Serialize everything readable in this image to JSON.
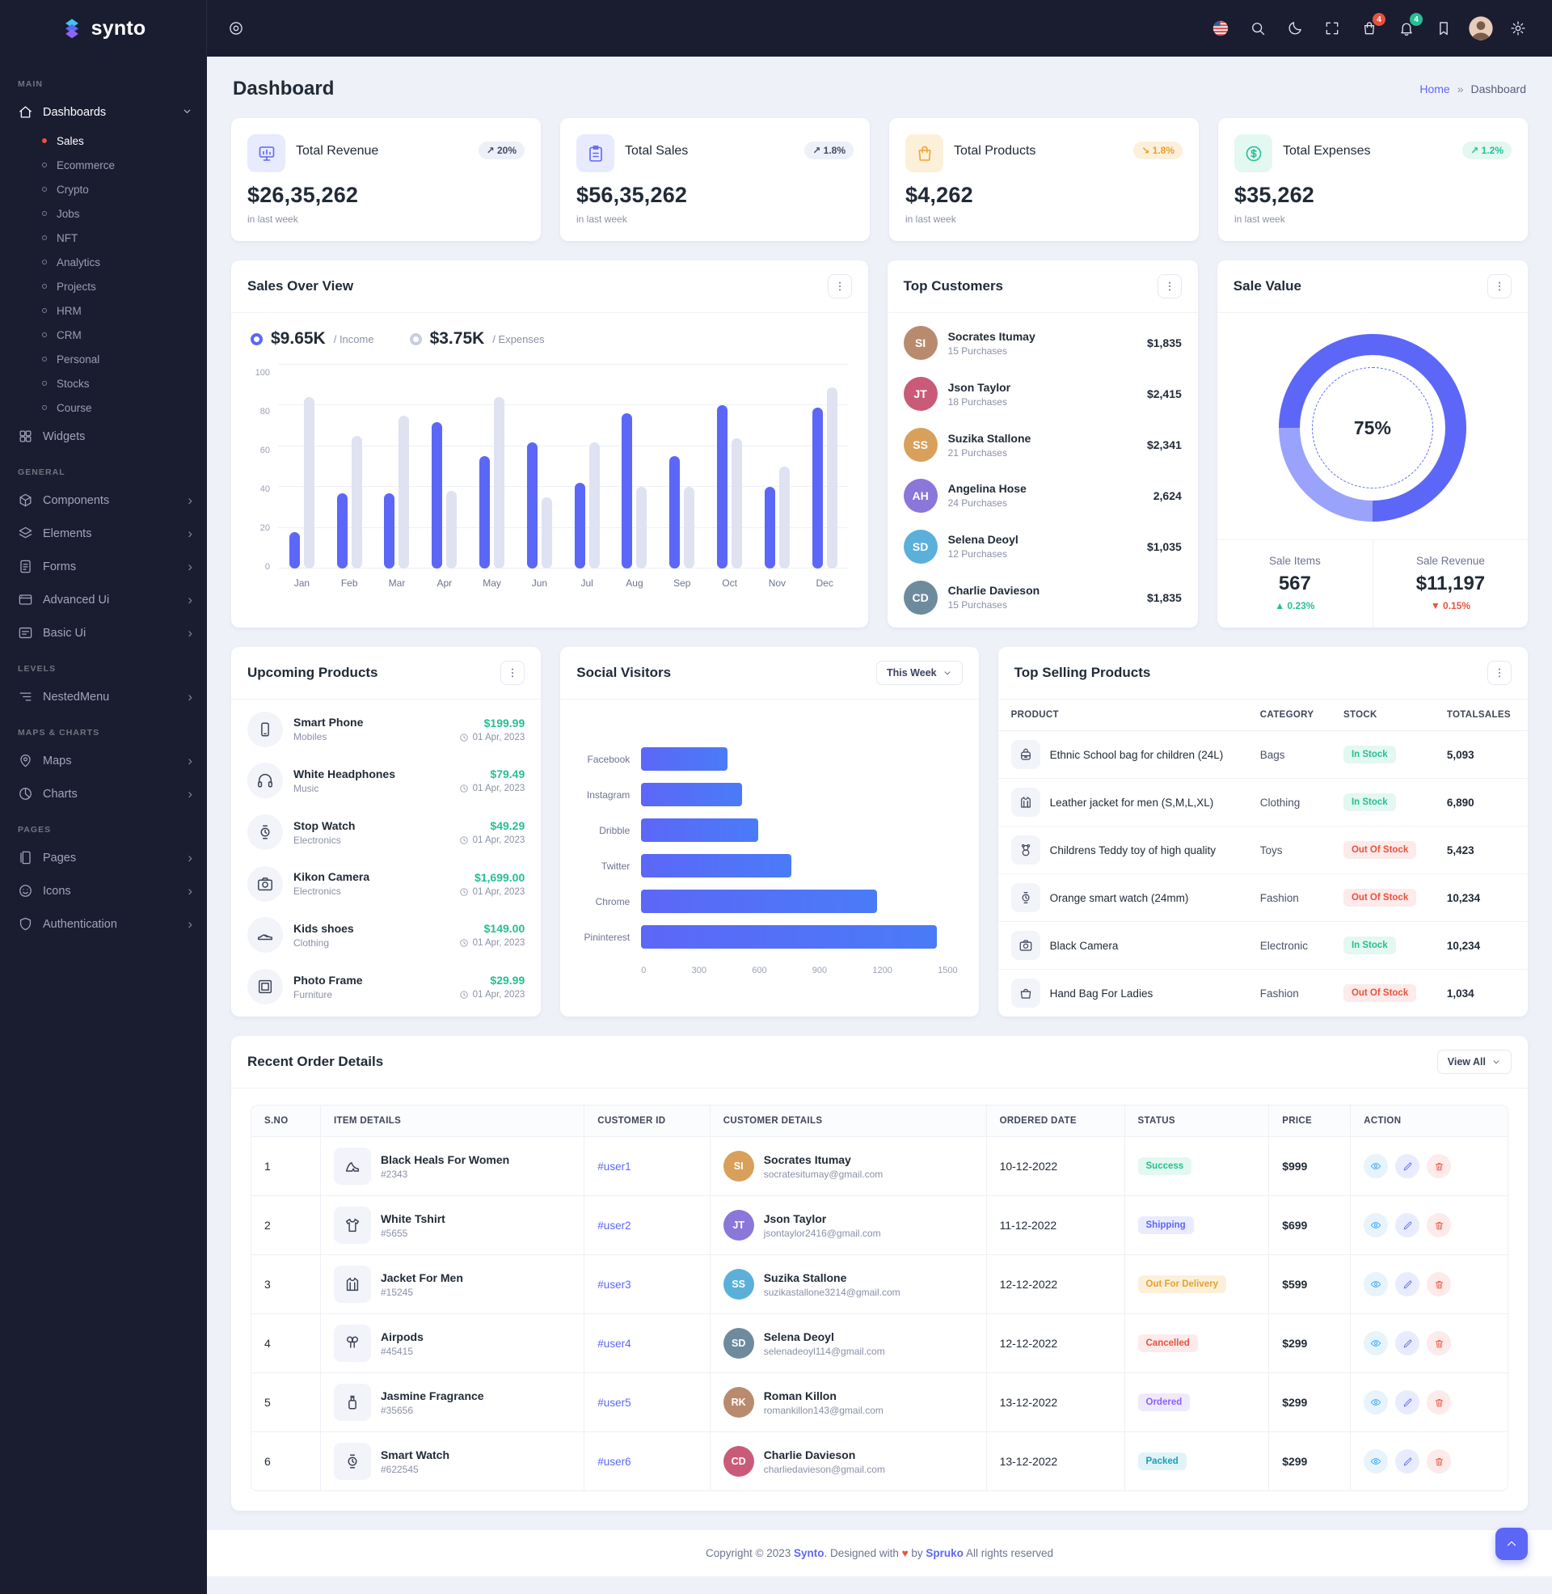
{
  "brand": {
    "name": "synto"
  },
  "topbar": {
    "cart_badge": "4",
    "bell_badge": "4"
  },
  "page": {
    "title": "Dashboard",
    "breadcrumb_home": "Home",
    "breadcrumb_sep": "»",
    "breadcrumb_current": "Dashboard"
  },
  "colors": {
    "primary": "#5c67f7",
    "success": "#26bf94",
    "danger": "#e6533c",
    "warning": "#f5b849",
    "dark": "#1a1c30"
  },
  "sidebar": {
    "sections": [
      {
        "label": "MAIN",
        "items": [
          {
            "label": "Dashboards",
            "icon": "home-icon",
            "chevron": true,
            "expanded": true,
            "active": true,
            "children": [
              {
                "label": "Sales",
                "active": true
              },
              {
                "label": "Ecommerce"
              },
              {
                "label": "Crypto"
              },
              {
                "label": "Jobs"
              },
              {
                "label": "NFT"
              },
              {
                "label": "Analytics"
              },
              {
                "label": "Projects"
              },
              {
                "label": "HRM"
              },
              {
                "label": "CRM"
              },
              {
                "label": "Personal"
              },
              {
                "label": "Stocks"
              },
              {
                "label": "Course"
              }
            ]
          },
          {
            "label": "Widgets",
            "icon": "widgets-icon",
            "chevron": false
          }
        ]
      },
      {
        "label": "GENERAL",
        "items": [
          {
            "label": "Components",
            "icon": "components-icon",
            "chevron": true
          },
          {
            "label": "Elements",
            "icon": "elements-icon",
            "chevron": true
          },
          {
            "label": "Forms",
            "icon": "forms-icon",
            "chevron": true
          },
          {
            "label": "Advanced Ui",
            "icon": "advanced-ui-icon",
            "chevron": true
          },
          {
            "label": "Basic Ui",
            "icon": "basic-ui-icon",
            "chevron": true
          }
        ]
      },
      {
        "label": "LEVELS",
        "items": [
          {
            "label": "NestedMenu",
            "icon": "nested-menu-icon",
            "chevron": true
          }
        ]
      },
      {
        "label": "MAPS & CHARTS",
        "items": [
          {
            "label": "Maps",
            "icon": "maps-icon",
            "chevron": true
          },
          {
            "label": "Charts",
            "icon": "charts-icon",
            "chevron": true
          }
        ]
      },
      {
        "label": "PAGES",
        "items": [
          {
            "label": "Pages",
            "icon": "pages-icon",
            "chevron": true
          },
          {
            "label": "Icons",
            "icon": "icons-icon",
            "chevron": true
          },
          {
            "label": "Authentication",
            "icon": "auth-icon",
            "chevron": true
          }
        ]
      }
    ]
  },
  "stats": [
    {
      "title": "Total Revenue",
      "value": "$26,35,262",
      "badge": "20%",
      "trend": "up",
      "caption": "in last week",
      "icon": "revenue-icon",
      "tone": "primary",
      "badge_tone": "neutral"
    },
    {
      "title": "Total Sales",
      "value": "$56,35,262",
      "badge": "1.8%",
      "trend": "up",
      "caption": "in last week",
      "icon": "sales-icon",
      "tone": "primary",
      "badge_tone": "neutral"
    },
    {
      "title": "Total Products",
      "value": "$4,262",
      "badge": "1.8%",
      "trend": "down",
      "caption": "in last week",
      "icon": "products-icon",
      "tone": "warning",
      "badge_tone": "warning"
    },
    {
      "title": "Total Expenses",
      "value": "$35,262",
      "badge": "1.2%",
      "trend": "up",
      "caption": "in last week",
      "icon": "expenses-icon",
      "tone": "success",
      "badge_tone": "success"
    }
  ],
  "sales_over_view": {
    "title": "Sales Over View",
    "legend": [
      {
        "value": "$9.65K",
        "label": "/ Income",
        "color": "#5c67f7"
      },
      {
        "value": "$3.75K",
        "label": "/ Expenses",
        "color": "#c8cde2"
      }
    ],
    "chart": {
      "type": "bar",
      "categories": [
        "Jan",
        "Feb",
        "Mar",
        "Apr",
        "May",
        "Jun",
        "Jul",
        "Aug",
        "Sep",
        "Oct",
        "Nov",
        "Dec"
      ],
      "series": [
        {
          "name": "Income",
          "values": [
            18,
            37,
            37,
            72,
            55,
            62,
            42,
            76,
            55,
            80,
            40,
            79
          ]
        },
        {
          "name": "Expenses",
          "values": [
            84,
            65,
            75,
            38,
            84,
            35,
            62,
            40,
            40,
            64,
            50,
            89
          ]
        }
      ],
      "ylim": [
        0,
        100
      ],
      "yticks": [
        0,
        20,
        40,
        60,
        80,
        100
      ]
    }
  },
  "top_customers": {
    "title": "Top Customers",
    "customers": [
      {
        "name": "Socrates Itumay",
        "purchases": "15 Purchases",
        "amount": "$1,835"
      },
      {
        "name": "Json Taylor",
        "purchases": "18 Purchases",
        "amount": "$2,415"
      },
      {
        "name": "Suzika Stallone",
        "purchases": "21 Purchases",
        "amount": "$2,341"
      },
      {
        "name": "Angelina Hose",
        "purchases": "24 Purchases",
        "amount": "2,624"
      },
      {
        "name": "Selena Deoyl",
        "purchases": "12 Purchases",
        "amount": "$1,035"
      },
      {
        "name": "Charlie Davieson",
        "purchases": "15 Purchases",
        "amount": "$1,835"
      }
    ]
  },
  "sale_value": {
    "title": "Sale Value",
    "percent": "75%",
    "donut_segments": [
      {
        "value": 75,
        "color": "#5c67f7"
      },
      {
        "value": 25,
        "color": "#99a3fb"
      }
    ],
    "items": [
      {
        "label": "Sale Items",
        "value": "567",
        "change": "0.23%",
        "direction": "up"
      },
      {
        "label": "Sale Revenue",
        "value": "$11,197",
        "change": "0.15%",
        "direction": "down"
      }
    ]
  },
  "upcoming_products": {
    "title": "Upcoming Products",
    "products": [
      {
        "name": "Smart Phone",
        "category": "Mobiles",
        "price": "$199.99",
        "date": "01 Apr, 2023",
        "icon": "phone-icon"
      },
      {
        "name": "White Headphones",
        "category": "Music",
        "price": "$79.49",
        "date": "01 Apr, 2023",
        "icon": "headphones-icon"
      },
      {
        "name": "Stop Watch",
        "category": "Electronics",
        "price": "$49.29",
        "date": "01 Apr, 2023",
        "icon": "watch-icon"
      },
      {
        "name": "Kikon Camera",
        "category": "Electronics",
        "price": "$1,699.00",
        "date": "01 Apr, 2023",
        "icon": "camera-icon"
      },
      {
        "name": "Kids shoes",
        "category": "Clothing",
        "price": "$149.00",
        "date": "01 Apr, 2023",
        "icon": "shoe-icon"
      },
      {
        "name": "Photo Frame",
        "category": "Furniture",
        "price": "$29.99",
        "date": "01 Apr, 2023",
        "icon": "frame-icon"
      }
    ]
  },
  "social_visitors": {
    "title": "Social Visitors",
    "filter_label": "This Week",
    "chart": {
      "type": "bar-horizontal",
      "categories": [
        "Facebook",
        "Instagram",
        "Dribble",
        "Twitter",
        "Chrome",
        "Pininterest"
      ],
      "values": [
        410,
        480,
        555,
        710,
        1120,
        1400
      ],
      "xticks": [
        0,
        300,
        600,
        900,
        1200,
        1500
      ],
      "xlim": [
        0,
        1500
      ]
    }
  },
  "top_selling": {
    "title": "Top Selling Products",
    "columns": [
      "PRODUCT",
      "CATEGORY",
      "STOCK",
      "TOTALSALES"
    ],
    "rows": [
      {
        "product": "Ethnic School bag for children (24L)",
        "category": "Bags",
        "stock": "In Stock",
        "stock_state": "in",
        "sales": "5,093",
        "icon": "schoolbag-icon"
      },
      {
        "product": "Leather jacket for men (S,M,L,XL)",
        "category": "Clothing",
        "stock": "In Stock",
        "stock_state": "in",
        "sales": "6,890",
        "icon": "jacket-icon"
      },
      {
        "product": "Childrens Teddy toy of high quality",
        "category": "Toys",
        "stock": "Out Of Stock",
        "stock_state": "out",
        "sales": "5,423",
        "icon": "teddy-icon"
      },
      {
        "product": "Orange smart watch (24mm)",
        "category": "Fashion",
        "stock": "Out Of Stock",
        "stock_state": "out",
        "sales": "10,234",
        "icon": "watch-icon"
      },
      {
        "product": "Black Camera",
        "category": "Electronic",
        "stock": "In Stock",
        "stock_state": "in",
        "sales": "10,234",
        "icon": "camera-icon"
      },
      {
        "product": "Hand Bag For Ladies",
        "category": "Fashion",
        "stock": "Out Of Stock",
        "stock_state": "out",
        "sales": "1,034",
        "icon": "handbag-icon"
      }
    ]
  },
  "recent_orders": {
    "title": "Recent Order Details",
    "view_all_label": "View All",
    "columns": [
      "S.NO",
      "ITEM DETAILS",
      "CUSTOMER ID",
      "CUSTOMER DETAILS",
      "ORDERED DATE",
      "STATUS",
      "PRICE",
      "ACTION"
    ],
    "rows": [
      {
        "sno": "1",
        "item": "Black Heals For Women",
        "item_id": "#2343",
        "icon": "heel-icon",
        "customer_id": "#user1",
        "customer": "Socrates Itumay",
        "email": "socratesitumay@gmail.com",
        "date": "10-12-2022",
        "status": "Success",
        "price": "$999"
      },
      {
        "sno": "2",
        "item": "White Tshirt",
        "item_id": "#5655",
        "icon": "tshirt-icon",
        "customer_id": "#user2",
        "customer": "Json Taylor",
        "email": "jsontaylor2416@gmail.com",
        "date": "11-12-2022",
        "status": "Shipping",
        "price": "$699"
      },
      {
        "sno": "3",
        "item": "Jacket For Men",
        "item_id": "#15245",
        "icon": "jacket-icon",
        "customer_id": "#user3",
        "customer": "Suzika Stallone",
        "email": "suzikastallone3214@gmail.com",
        "date": "12-12-2022",
        "status": "Out For Delivery",
        "price": "$599"
      },
      {
        "sno": "4",
        "item": "Airpods",
        "item_id": "#45415",
        "icon": "airpods-icon",
        "customer_id": "#user4",
        "customer": "Selena Deoyl",
        "email": "selenadeoyl114@gmail.com",
        "date": "12-12-2022",
        "status": "Cancelled",
        "price": "$299"
      },
      {
        "sno": "5",
        "item": "Jasmine Fragrance",
        "item_id": "#35656",
        "icon": "fragrance-icon",
        "customer_id": "#user5",
        "customer": "Roman Killon",
        "email": "romankillon143@gmail.com",
        "date": "13-12-2022",
        "status": "Ordered",
        "price": "$299"
      },
      {
        "sno": "6",
        "item": "Smart Watch",
        "item_id": "#622545",
        "icon": "watch-icon",
        "customer_id": "#user6",
        "customer": "Charlie Davieson",
        "email": "charliedavieson@gmail.com",
        "date": "13-12-2022",
        "status": "Packed",
        "price": "$299"
      }
    ]
  },
  "footer": {
    "prefix": "Copyright © 2023",
    "brand": "Synto",
    "middle": ". Designed with",
    "heart": "♥",
    "by": "by",
    "designer": "Spruko",
    "suffix": "All rights reserved"
  }
}
